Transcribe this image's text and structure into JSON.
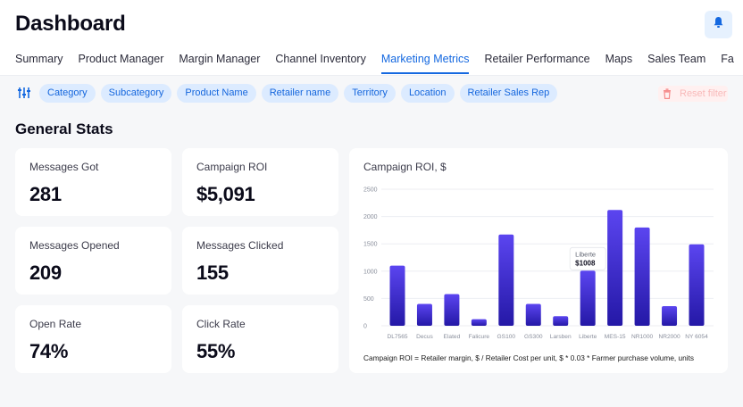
{
  "header": {
    "title": "Dashboard",
    "bell_icon": "bell-icon"
  },
  "tabs": [
    {
      "label": "Summary",
      "active": false
    },
    {
      "label": "Product Manager",
      "active": false
    },
    {
      "label": "Margin Manager",
      "active": false
    },
    {
      "label": "Channel Inventory",
      "active": false
    },
    {
      "label": "Marketing Metrics",
      "active": true
    },
    {
      "label": "Retailer Performance",
      "active": false
    },
    {
      "label": "Maps",
      "active": false
    },
    {
      "label": "Sales Team",
      "active": false
    },
    {
      "label": "Fa",
      "active": false
    }
  ],
  "filters": {
    "icon": "sliders-icon",
    "chips": [
      "Category",
      "Subcategory",
      "Product Name",
      "Retailer name",
      "Territory",
      "Location",
      "Retailer Sales Rep"
    ],
    "reset_label": "Reset filter",
    "reset_icon": "trash-icon"
  },
  "section": {
    "title": "General Stats"
  },
  "stats": [
    {
      "label": "Messages Got",
      "value": "281"
    },
    {
      "label": "Campaign ROI",
      "value": "$5,091"
    },
    {
      "label": "Messages Opened",
      "value": "209"
    },
    {
      "label": "Messages Clicked",
      "value": "155"
    },
    {
      "label": "Open Rate",
      "value": "74%"
    },
    {
      "label": "Click Rate",
      "value": "55%"
    }
  ],
  "colors": {
    "accent": "#1468e0",
    "bar_top": "#5b45f0",
    "bar_bottom": "#2418a6",
    "chip_bg": "#dcebff"
  },
  "chart_data": {
    "type": "bar",
    "title": "Campaign ROI, $",
    "categories": [
      "DL7565",
      "Decus",
      "Elated",
      "Falicure",
      "GS100",
      "GS300",
      "Larsben",
      "Liberte",
      "MES-15",
      "NR1000",
      "NR2000",
      "NY 6054"
    ],
    "values": [
      1100,
      400,
      580,
      120,
      1670,
      400,
      175,
      1008,
      2120,
      1800,
      360,
      1490
    ],
    "ylim": [
      0,
      2500
    ],
    "yticks": [
      0,
      500,
      1000,
      1500,
      2000,
      2500
    ],
    "grid": true,
    "tooltip": {
      "category": "Liberte",
      "value_label": "$1008"
    },
    "footnote": "Campaign ROI = Retailer margin, $ / Retailer Cost per unit, $ * 0.03 * Farmer purchase volume, units"
  }
}
